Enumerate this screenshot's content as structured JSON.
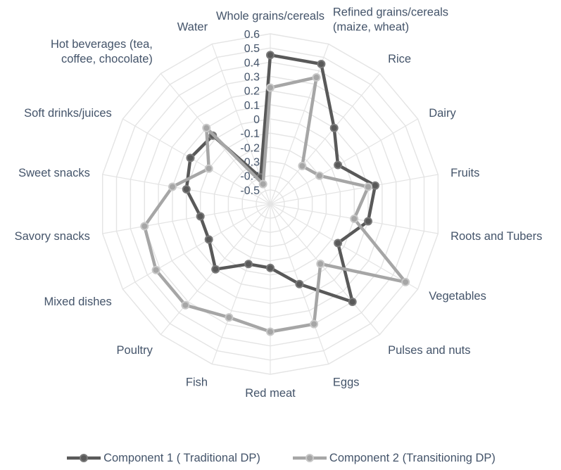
{
  "chart_data": {
    "type": "radar",
    "categories": [
      "Whole grains/cereals",
      "Refined grains/cereals (maize, wheat)",
      "Rice",
      "Dairy",
      "Fruits",
      "Roots and Tubers",
      "Vegetables",
      "Pulses and nuts",
      "Eggs",
      "Red meat",
      "Fish",
      "Poultry",
      "Mixed dishes",
      "Savory snacks",
      "Sweet snacks",
      "Soft drinks/juices",
      "Hot beverages (tea, coffee, chocolate)",
      "Water"
    ],
    "axis_ticks": [
      "0.6",
      "0.5",
      "0.4",
      "0.3",
      "0.2",
      "0.1",
      "0",
      "-0.1",
      "-0.2",
      "-0.3",
      "-0.4",
      "-0.5"
    ],
    "rlim": [
      -0.6,
      0.6
    ],
    "grid": true,
    "legend_position": "bottom",
    "series": [
      {
        "name": "Component 1 ( Traditional DP)",
        "color": "#595959",
        "values": [
          0.45,
          0.45,
          0.1,
          -0.05,
          0.15,
          0.1,
          -0.05,
          0.3,
          0.0,
          -0.15,
          -0.15,
          0.0,
          -0.1,
          -0.1,
          0.0,
          0.05,
          0.03,
          -0.4
        ]
      },
      {
        "name": "Component 2 (Transitioning DP)",
        "color": "#a6a6a6",
        "values": [
          0.22,
          0.35,
          -0.25,
          -0.2,
          0.1,
          0.0,
          0.5,
          -0.05,
          0.3,
          0.3,
          0.25,
          0.33,
          0.33,
          0.3,
          0.1,
          -0.1,
          0.1,
          -0.45
        ]
      }
    ]
  }
}
